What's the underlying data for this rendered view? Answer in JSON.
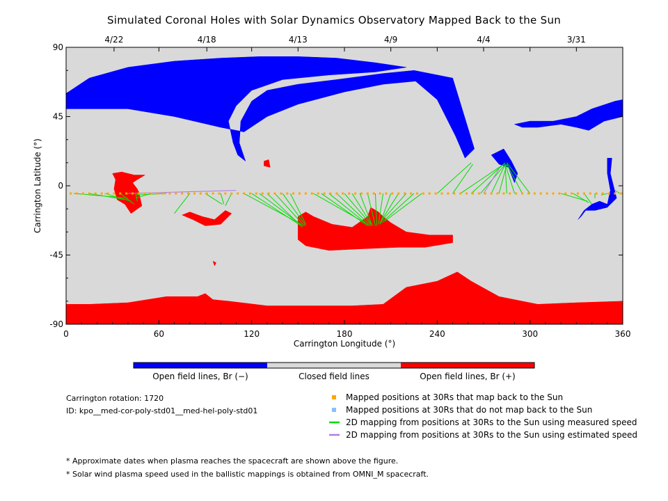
{
  "chart_data": {
    "type": "map",
    "title": "Simulated Coronal Holes with Solar Dynamics Observatory Mapped Back to the Sun",
    "xlabel": "Carrington Longitude (°)",
    "ylabel": "Carrington Latitude (°)",
    "xlim": [
      0,
      360
    ],
    "ylim": [
      -90,
      90
    ],
    "x_ticks": [
      "0",
      "60",
      "120",
      "180",
      "240",
      "300",
      "360"
    ],
    "y_ticks": [
      "90",
      "45",
      "0",
      "-45",
      "-90"
    ],
    "top_dates": [
      {
        "label": "4/22",
        "lon": 31
      },
      {
        "label": "4/18",
        "lon": 91
      },
      {
        "label": "4/13",
        "lon": 150
      },
      {
        "label": "4/9",
        "lon": 210
      },
      {
        "label": "4/4",
        "lon": 270
      },
      {
        "label": "3/31",
        "lon": 330
      }
    ],
    "colorbar": {
      "labels": [
        "Open field lines, Br (−)",
        "Closed field lines",
        "Open field lines, Br (+)"
      ],
      "colors": [
        "#0000ff",
        "#d9d9d9",
        "#ff0000"
      ]
    },
    "info": {
      "rotation": "Carrington rotation: 1720",
      "id": "ID: kpo__med-cor-poly-std01__med-hel-poly-std01"
    },
    "legend": [
      {
        "label": "Mapped positions at 30Rs that map back to the Sun",
        "color": "#ffa500",
        "kind": "square"
      },
      {
        "label": "Mapped positions at 30Rs that do not map back to the Sun",
        "color": "#87bfff",
        "kind": "square"
      },
      {
        "label": "2D mapping from positions at 30Rs to the Sun using measured speed",
        "color": "#00dd00",
        "kind": "line"
      },
      {
        "label": "2D mapping from positions at 30Rs to the Sun using estimated speed",
        "color": "#b07ae8",
        "kind": "line"
      }
    ],
    "footnotes": [
      "* Approximate dates when plasma reaches the spacecraft are shown above the figure.",
      "* Solar wind plasma speed used in the ballistic mappings is obtained from OMNI_M spacecraft."
    ],
    "mapped_positions_lat": -5,
    "mapped_positions_lon": [
      3,
      7,
      11,
      15,
      19,
      23,
      27,
      31,
      35,
      39,
      43,
      47,
      51,
      55,
      59,
      63,
      67,
      71,
      75,
      79,
      83,
      87,
      91,
      95,
      99,
      103,
      107,
      111,
      115,
      119,
      123,
      127,
      131,
      135,
      139,
      143,
      147,
      151,
      155,
      159,
      163,
      167,
      171,
      175,
      179,
      183,
      187,
      191,
      195,
      199,
      203,
      207,
      211,
      215,
      219,
      223,
      227,
      231,
      235,
      239,
      243,
      247,
      251,
      255,
      259,
      263,
      267,
      271,
      275,
      279,
      283,
      287,
      291,
      295,
      299,
      303,
      307,
      311,
      315,
      319,
      323,
      327,
      331,
      335,
      339,
      343,
      347,
      351,
      355,
      359
    ],
    "mapping_lines": [
      {
        "from": 5,
        "to": [
          40,
          -8
        ]
      },
      {
        "from": 15,
        "to": [
          38,
          -9
        ]
      },
      {
        "from": 25,
        "to": [
          42,
          -10
        ]
      },
      {
        "from": 35,
        "to": [
          44,
          -12
        ]
      },
      {
        "from": 45,
        "to": [
          46,
          -10
        ]
      },
      {
        "from": 55,
        "to": [
          45,
          -8
        ]
      },
      {
        "from": 65,
        "to": [
          45,
          -6
        ]
      },
      {
        "from": 80,
        "to": [
          70,
          -18
        ]
      },
      {
        "from": 90,
        "to": [
          101,
          -12
        ]
      },
      {
        "from": 100,
        "to": [
          102,
          -12
        ]
      },
      {
        "from": 107,
        "to": [
          103,
          -13
        ]
      },
      {
        "from": 115,
        "to": [
          152,
          -25
        ]
      },
      {
        "from": 120,
        "to": [
          152,
          -26
        ]
      },
      {
        "from": 125,
        "to": [
          153,
          -26
        ]
      },
      {
        "from": 130,
        "to": [
          153,
          -27
        ]
      },
      {
        "from": 135,
        "to": [
          154,
          -26
        ]
      },
      {
        "from": 140,
        "to": [
          155,
          -26
        ]
      },
      {
        "from": 145,
        "to": [
          155,
          -25
        ]
      },
      {
        "from": 160,
        "to": [
          195,
          -25
        ]
      },
      {
        "from": 165,
        "to": [
          195,
          -26
        ]
      },
      {
        "from": 170,
        "to": [
          196,
          -26
        ]
      },
      {
        "from": 175,
        "to": [
          197,
          -26
        ]
      },
      {
        "from": 180,
        "to": [
          197,
          -25
        ]
      },
      {
        "from": 185,
        "to": [
          198,
          -26
        ]
      },
      {
        "from": 190,
        "to": [
          198,
          -26
        ]
      },
      {
        "from": 195,
        "to": [
          200,
          -26
        ]
      },
      {
        "from": 200,
        "to": [
          201,
          -26
        ]
      },
      {
        "from": 205,
        "to": [
          202,
          -25
        ]
      },
      {
        "from": 210,
        "to": [
          203,
          -25
        ]
      },
      {
        "from": 215,
        "to": [
          203,
          -24
        ]
      },
      {
        "from": 220,
        "to": [
          203,
          -24
        ]
      },
      {
        "from": 225,
        "to": [
          204,
          -24
        ]
      },
      {
        "from": 230,
        "to": [
          206,
          -23
        ]
      },
      {
        "from": 240,
        "to": [
          262,
          15
        ]
      },
      {
        "from": 250,
        "to": [
          263,
          14
        ]
      },
      {
        "from": 255,
        "to": [
          283,
          14
        ]
      },
      {
        "from": 262,
        "to": [
          284,
          15
        ]
      },
      {
        "from": 268,
        "to": [
          284,
          14
        ]
      },
      {
        "from": 275,
        "to": [
          284,
          14
        ]
      },
      {
        "from": 280,
        "to": [
          285,
          14
        ]
      },
      {
        "from": 285,
        "to": [
          284,
          13
        ]
      },
      {
        "from": 290,
        "to": [
          284,
          14
        ]
      },
      {
        "from": 295,
        "to": [
          285,
          14
        ]
      },
      {
        "from": 300,
        "to": [
          285,
          15
        ]
      },
      {
        "from": 320,
        "to": [
          337,
          -10
        ]
      },
      {
        "from": 328,
        "to": [
          338,
          -11
        ]
      },
      {
        "from": 335,
        "to": [
          340,
          -12
        ]
      },
      {
        "from": 342,
        "to": [
          342,
          -8
        ]
      },
      {
        "from": 350,
        "to": [
          346,
          -6
        ]
      },
      {
        "from": 358,
        "to": [
          355,
          -3
        ]
      }
    ],
    "estimated_lines": [
      {
        "from": 40,
        "to": [
          110,
          -3
        ]
      },
      {
        "from": 270,
        "to": [
          280,
          11
        ]
      }
    ],
    "regions": {
      "north_open_negative": {
        "color": "#0000ff",
        "polygons": [
          [
            [
              0,
              60
            ],
            [
              15,
              70
            ],
            [
              40,
              77
            ],
            [
              70,
              81
            ],
            [
              100,
              83
            ],
            [
              125,
              84
            ],
            [
              150,
              84
            ],
            [
              175,
              83
            ],
            [
              200,
              80
            ],
            [
              220,
              77
            ],
            [
              200,
              74
            ],
            [
              170,
              72
            ],
            [
              140,
              69
            ],
            [
              120,
              62
            ],
            [
              110,
              52
            ],
            [
              105,
              42
            ],
            [
              108,
              28
            ],
            [
              111,
              20
            ],
            [
              116,
              16
            ],
            [
              112,
              28
            ],
            [
              113,
              42
            ],
            [
              120,
              55
            ],
            [
              130,
              62
            ],
            [
              150,
              66
            ],
            [
              175,
              69
            ],
            [
              205,
              73
            ],
            [
              225,
              75
            ],
            [
              250,
              70
            ],
            [
              264,
              24
            ],
            [
              258,
              18
            ],
            [
              252,
              32
            ],
            [
              240,
              56
            ],
            [
              226,
              68
            ],
            [
              205,
              66
            ],
            [
              180,
              61
            ],
            [
              150,
              53
            ],
            [
              130,
              45
            ],
            [
              115,
              35
            ],
            [
              100,
              38
            ],
            [
              70,
              45
            ],
            [
              40,
              50
            ],
            [
              20,
              50
            ],
            [
              0,
              50
            ]
          ]
        ]
      },
      "north_east_negative": {
        "color": "#0000ff",
        "polygons": [
          [
            [
              330,
              45
            ],
            [
              340,
              50
            ],
            [
              355,
              55
            ],
            [
              360,
              56
            ],
            [
              360,
              45
            ],
            [
              348,
              42
            ],
            [
              338,
              36
            ],
            [
              330,
              38
            ],
            [
              320,
              40
            ],
            [
              305,
              38
            ],
            [
              295,
              38
            ],
            [
              290,
              40
            ],
            [
              300,
              42
            ],
            [
              315,
              42
            ]
          ],
          [
            [
              275,
              20
            ],
            [
              283,
              24
            ],
            [
              288,
              16
            ],
            [
              292,
              8
            ],
            [
              290,
              2
            ],
            [
              286,
              12
            ],
            [
              280,
              14
            ]
          ],
          [
            [
              345,
              -10
            ],
            [
              350,
              -12
            ],
            [
              352,
              -3
            ],
            [
              350,
              8
            ],
            [
              350,
              18
            ],
            [
              353,
              18
            ],
            [
              352,
              8
            ],
            [
              356,
              -8
            ],
            [
              350,
              -14
            ],
            [
              342,
              -16
            ],
            [
              336,
              -16
            ],
            [
              333,
              -20
            ],
            [
              331,
              -22
            ],
            [
              335,
              -16
            ],
            [
              340,
              -12
            ]
          ]
        ]
      },
      "closed_field_small": {
        "color": "#ff0000",
        "polygons": [
          [
            [
              128,
              16
            ],
            [
              131,
              17
            ],
            [
              132,
              12
            ],
            [
              128,
              13
            ]
          ],
          [
            [
              95,
              -49
            ],
            [
              96,
              -52
            ],
            [
              97,
              -50
            ]
          ]
        ]
      },
      "south_open_positive": {
        "color": "#ff0000",
        "polygons": [
          [
            [
              0,
              -77
            ],
            [
              15,
              -77
            ],
            [
              40,
              -76
            ],
            [
              65,
              -72
            ],
            [
              85,
              -72
            ],
            [
              90,
              -70
            ],
            [
              95,
              -74
            ],
            [
              105,
              -75
            ],
            [
              130,
              -78
            ],
            [
              160,
              -78
            ],
            [
              185,
              -78
            ],
            [
              205,
              -77
            ],
            [
              220,
              -66
            ],
            [
              240,
              -62
            ],
            [
              253,
              -56
            ],
            [
              262,
              -62
            ],
            [
              280,
              -72
            ],
            [
              305,
              -77
            ],
            [
              330,
              -76
            ],
            [
              360,
              -75
            ],
            [
              360,
              -90
            ],
            [
              0,
              -90
            ]
          ],
          [
            [
              30,
              8
            ],
            [
              36,
              9
            ],
            [
              44,
              7
            ],
            [
              51,
              7
            ],
            [
              46,
              4
            ],
            [
              43,
              2
            ],
            [
              46,
              -2
            ],
            [
              47,
              -4
            ],
            [
              49,
              -13
            ],
            [
              42,
              -18
            ],
            [
              38,
              -12
            ],
            [
              33,
              -9
            ],
            [
              31,
              -2
            ],
            [
              32,
              4
            ]
          ],
          [
            [
              150,
              -20
            ],
            [
              155,
              -17
            ],
            [
              160,
              -20
            ],
            [
              172,
              -25
            ],
            [
              185,
              -27
            ],
            [
              195,
              -20
            ],
            [
              197,
              -14
            ],
            [
              202,
              -17
            ],
            [
              205,
              -20
            ],
            [
              210,
              -24
            ],
            [
              220,
              -30
            ],
            [
              235,
              -32
            ],
            [
              250,
              -32
            ],
            [
              250,
              -37
            ],
            [
              232,
              -40
            ],
            [
              215,
              -40
            ],
            [
              190,
              -41
            ],
            [
              170,
              -42
            ],
            [
              155,
              -39
            ],
            [
              150,
              -35
            ]
          ],
          [
            [
              75,
              -19
            ],
            [
              82,
              -22
            ],
            [
              90,
              -26
            ],
            [
              100,
              -25
            ],
            [
              107,
              -18
            ],
            [
              103,
              -16
            ],
            [
              96,
              -22
            ],
            [
              88,
              -20
            ],
            [
              80,
              -17
            ]
          ]
        ]
      }
    }
  }
}
